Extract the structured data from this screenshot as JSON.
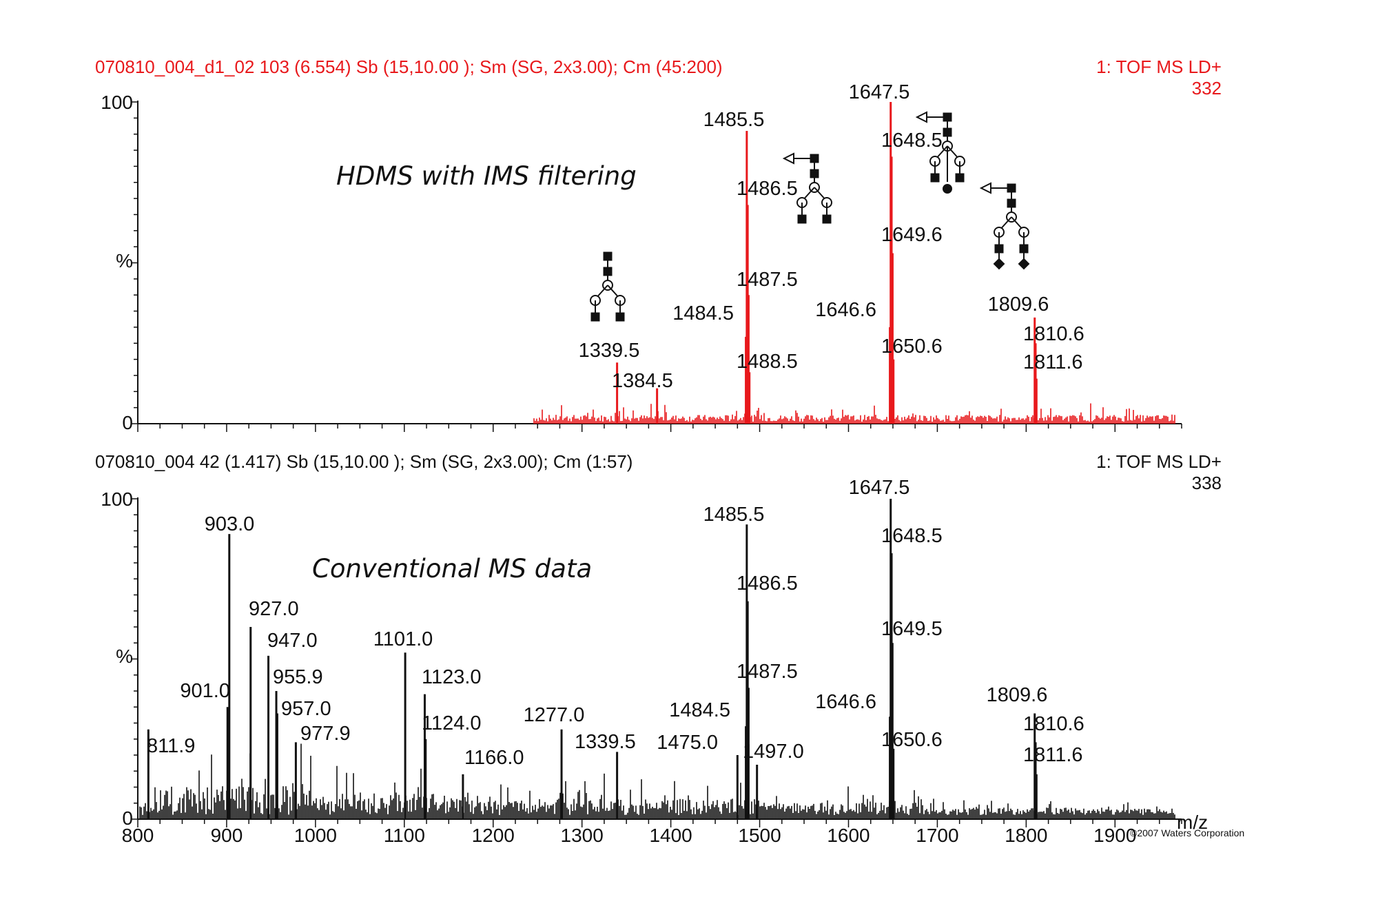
{
  "colors": {
    "top": "#e8191c",
    "bottom": "#111111"
  },
  "panels": [
    {
      "header_left": "070810_004_d1_02  103 (6.554) Sb (15,10.00 ); Sm (SG, 2x3.00); Cm (45:200)",
      "header_right": "1: TOF MS LD+",
      "max_intensity": "332",
      "subtitle": "HDMS with IMS filtering",
      "y_ticks": [
        "100",
        "%",
        "0"
      ]
    },
    {
      "header_left": "070810_004  42 (1.417) Sb (15,10.00 ); Sm (SG, 2x3.00); Cm (1:57)",
      "header_right": "1: TOF MS LD+",
      "max_intensity": "338",
      "subtitle": "Conventional MS data",
      "y_ticks": [
        "100",
        "%",
        "0"
      ]
    }
  ],
  "x_axis_label": "m/z",
  "copyright": "©2007 Waters Corporation",
  "chart_data": [
    {
      "type": "line",
      "title": "HDMS with IMS filtering",
      "xlabel": "m/z",
      "ylabel": "%",
      "xlim": [
        800,
        1975
      ],
      "ylim": [
        0,
        100
      ],
      "series": [
        {
          "values": [
            {
              "x": 1339.5,
              "y": 19,
              "label": "1339.5"
            },
            {
              "x": 1384.5,
              "y": 11,
              "label": "1384.5"
            },
            {
              "x": 1484.5,
              "y": 27,
              "label": "1484.5"
            },
            {
              "x": 1485.5,
              "y": 91,
              "label": "1485.5"
            },
            {
              "x": 1486.5,
              "y": 68,
              "label": "1486.5"
            },
            {
              "x": 1487.5,
              "y": 40,
              "label": "1487.5"
            },
            {
              "x": 1488.5,
              "y": 16,
              "label": "1488.5"
            },
            {
              "x": 1646.6,
              "y": 30,
              "label": "1646.6"
            },
            {
              "x": 1647.5,
              "y": 100,
              "label": "1647.5"
            },
            {
              "x": 1648.5,
              "y": 83,
              "label": "1648.5"
            },
            {
              "x": 1649.6,
              "y": 53,
              "label": "1649.6"
            },
            {
              "x": 1650.6,
              "y": 20,
              "label": "1650.6"
            },
            {
              "x": 1809.6,
              "y": 33,
              "label": "1809.6"
            },
            {
              "x": 1810.6,
              "y": 25,
              "label": "1810.6"
            },
            {
              "x": 1811.6,
              "y": 14,
              "label": "1811.6"
            }
          ]
        }
      ]
    },
    {
      "type": "line",
      "title": "Conventional MS data",
      "xlabel": "m/z",
      "ylabel": "%",
      "xlim": [
        800,
        1975
      ],
      "ylim": [
        0,
        100
      ],
      "x_ticks": [
        800,
        900,
        1000,
        1100,
        1200,
        1300,
        1400,
        1500,
        1600,
        1700,
        1800,
        1900
      ],
      "series": [
        {
          "values": [
            {
              "x": 811.9,
              "y": 28,
              "label": "811.9"
            },
            {
              "x": 901.0,
              "y": 35,
              "label": "901.0"
            },
            {
              "x": 903.0,
              "y": 89,
              "label": "903.0"
            },
            {
              "x": 927.0,
              "y": 60,
              "label": "927.0"
            },
            {
              "x": 947.0,
              "y": 51,
              "label": "947.0"
            },
            {
              "x": 955.9,
              "y": 40,
              "label": "955.9"
            },
            {
              "x": 957.0,
              "y": 33,
              "label": "957.0"
            },
            {
              "x": 977.9,
              "y": 24,
              "label": "977.9"
            },
            {
              "x": 1101.0,
              "y": 52,
              "label": "1101.0"
            },
            {
              "x": 1123.0,
              "y": 39,
              "label": "1123.0"
            },
            {
              "x": 1124.0,
              "y": 25,
              "label": "1124.0"
            },
            {
              "x": 1166.0,
              "y": 14,
              "label": "1166.0"
            },
            {
              "x": 1277.0,
              "y": 28,
              "label": "1277.0"
            },
            {
              "x": 1339.5,
              "y": 21,
              "label": "1339.5"
            },
            {
              "x": 1475.0,
              "y": 20,
              "label": "1475.0"
            },
            {
              "x": 1484.5,
              "y": 29,
              "label": "1484.5"
            },
            {
              "x": 1485.5,
              "y": 92,
              "label": "1485.5"
            },
            {
              "x": 1486.5,
              "y": 68,
              "label": "1486.5"
            },
            {
              "x": 1487.5,
              "y": 41,
              "label": "1487.5"
            },
            {
              "x": 1497.0,
              "y": 17,
              "label": "1497.0"
            },
            {
              "x": 1646.6,
              "y": 32,
              "label": "1646.6"
            },
            {
              "x": 1647.5,
              "y": 100,
              "label": "1647.5"
            },
            {
              "x": 1648.5,
              "y": 83,
              "label": "1648.5"
            },
            {
              "x": 1649.5,
              "y": 55,
              "label": "1649.5"
            },
            {
              "x": 1650.6,
              "y": 22,
              "label": "1650.6"
            },
            {
              "x": 1809.6,
              "y": 33,
              "label": "1809.6"
            },
            {
              "x": 1810.6,
              "y": 24,
              "label": "1810.6"
            },
            {
              "x": 1811.6,
              "y": 14,
              "label": "1811.6"
            }
          ]
        }
      ]
    }
  ]
}
